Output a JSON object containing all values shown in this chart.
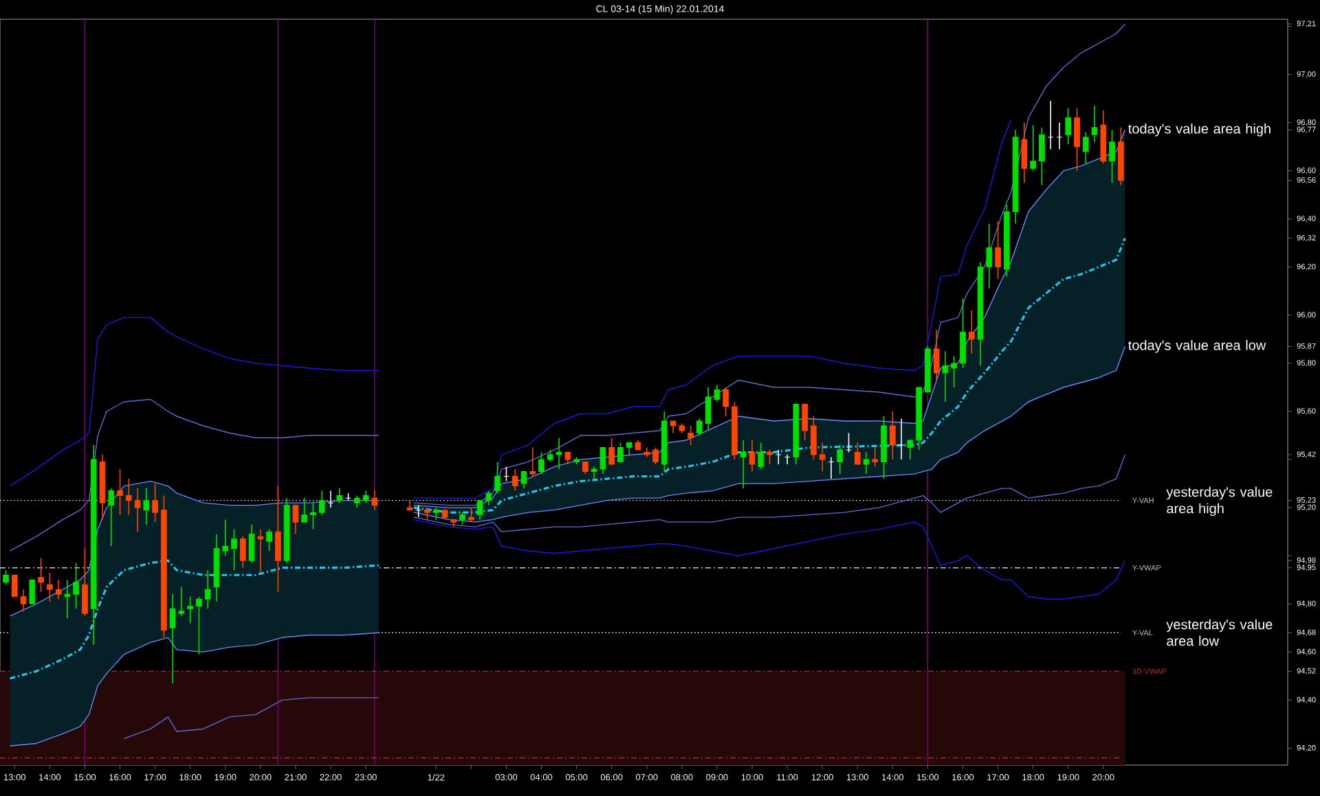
{
  "chart_data": {
    "type": "candlestick",
    "title": "CL 03-14 (15 Min)  22.01.2014",
    "x": [
      "2014-01-21T12:45",
      "2014-01-21T13:00",
      "2014-01-21T13:15",
      "2014-01-21T13:30",
      "2014-01-21T13:45",
      "2014-01-21T14:00",
      "2014-01-21T14:15",
      "2014-01-21T14:30",
      "2014-01-21T14:45",
      "2014-01-21T15:00",
      "2014-01-21T15:15",
      "2014-01-21T15:30",
      "2014-01-21T15:45",
      "2014-01-21T16:00",
      "2014-01-21T16:15",
      "2014-01-21T16:30",
      "2014-01-21T16:45",
      "2014-01-21T17:00",
      "2014-01-21T17:15",
      "2014-01-21T17:30",
      "2014-01-21T17:45",
      "2014-01-21T18:00",
      "2014-01-21T18:15",
      "2014-01-21T18:30",
      "2014-01-21T18:45",
      "2014-01-21T19:00",
      "2014-01-21T19:15",
      "2014-01-21T19:30",
      "2014-01-21T19:45",
      "2014-01-21T20:00",
      "2014-01-21T20:15",
      "2014-01-21T20:30",
      "2014-01-21T20:45",
      "2014-01-21T21:00",
      "2014-01-21T21:15",
      "2014-01-21T21:30",
      "2014-01-21T21:45",
      "2014-01-21T22:00",
      "2014-01-21T22:15",
      "2014-01-21T22:30",
      "2014-01-21T22:45",
      "2014-01-21T23:00",
      "2014-01-21T23:15",
      "2014-01-22T00:15",
      "2014-01-22T00:30",
      "2014-01-22T00:45",
      "2014-01-22T01:00",
      "2014-01-22T01:15",
      "2014-01-22T01:30",
      "2014-01-22T01:45",
      "2014-01-22T02:00",
      "2014-01-22T02:15",
      "2014-01-22T02:30",
      "2014-01-22T02:45",
      "2014-01-22T03:00",
      "2014-01-22T03:15",
      "2014-01-22T03:30",
      "2014-01-22T03:45",
      "2014-01-22T04:00",
      "2014-01-22T04:15",
      "2014-01-22T04:30",
      "2014-01-22T04:45",
      "2014-01-22T05:00",
      "2014-01-22T05:15",
      "2014-01-22T05:30",
      "2014-01-22T05:45",
      "2014-01-22T06:00",
      "2014-01-22T06:15",
      "2014-01-22T06:30",
      "2014-01-22T06:45",
      "2014-01-22T07:00",
      "2014-01-22T07:15",
      "2014-01-22T07:30",
      "2014-01-22T07:45",
      "2014-01-22T08:00",
      "2014-01-22T08:15",
      "2014-01-22T08:30",
      "2014-01-22T08:45",
      "2014-01-22T09:00",
      "2014-01-22T09:15",
      "2014-01-22T09:30",
      "2014-01-22T09:45",
      "2014-01-22T10:00",
      "2014-01-22T10:15",
      "2014-01-22T10:30",
      "2014-01-22T10:45",
      "2014-01-22T11:00",
      "2014-01-22T11:15",
      "2014-01-22T11:30",
      "2014-01-22T11:45",
      "2014-01-22T12:00",
      "2014-01-22T12:15",
      "2014-01-22T12:30",
      "2014-01-22T12:45",
      "2014-01-22T13:00",
      "2014-01-22T13:15",
      "2014-01-22T13:30",
      "2014-01-22T13:45",
      "2014-01-22T14:00",
      "2014-01-22T14:15",
      "2014-01-22T14:30",
      "2014-01-22T14:45",
      "2014-01-22T15:00",
      "2014-01-22T15:15",
      "2014-01-22T15:30",
      "2014-01-22T15:45",
      "2014-01-22T16:00",
      "2014-01-22T16:15",
      "2014-01-22T16:30",
      "2014-01-22T16:45",
      "2014-01-22T17:00",
      "2014-01-22T17:15",
      "2014-01-22T17:30",
      "2014-01-22T17:45",
      "2014-01-22T18:00",
      "2014-01-22T18:15",
      "2014-01-22T18:30",
      "2014-01-22T18:45",
      "2014-01-22T19:00",
      "2014-01-22T19:15",
      "2014-01-22T19:30",
      "2014-01-22T19:45",
      "2014-01-22T20:00",
      "2014-01-22T20:15",
      "2014-01-22T20:30"
    ],
    "ohlc": [
      [
        94.89,
        94.94,
        94.88,
        94.92
      ],
      [
        94.92,
        94.92,
        94.83,
        94.83
      ],
      [
        94.83,
        94.86,
        94.77,
        94.8
      ],
      [
        94.8,
        94.9,
        94.8,
        94.9
      ],
      [
        94.91,
        94.99,
        94.85,
        94.89
      ],
      [
        94.88,
        94.93,
        94.81,
        94.86
      ],
      [
        94.86,
        94.9,
        94.82,
        94.84
      ],
      [
        94.83,
        94.9,
        94.74,
        94.84
      ],
      [
        94.84,
        94.97,
        94.78,
        94.89
      ],
      [
        94.88,
        95.03,
        94.75,
        94.76
      ],
      [
        94.78,
        95.46,
        94.63,
        95.4
      ],
      [
        95.39,
        95.42,
        95.15,
        95.22
      ],
      [
        95.21,
        95.28,
        95.04,
        95.27
      ],
      [
        95.27,
        95.36,
        95.17,
        95.25
      ],
      [
        95.25,
        95.32,
        95.17,
        95.23
      ],
      [
        95.23,
        95.28,
        95.1,
        95.2
      ],
      [
        95.19,
        95.28,
        95.13,
        95.23
      ],
      [
        95.23,
        95.3,
        95.14,
        95.18
      ],
      [
        95.19,
        95.25,
        94.66,
        94.69
      ],
      [
        94.7,
        94.84,
        94.47,
        94.78
      ],
      [
        94.76,
        94.87,
        94.75,
        94.77
      ],
      [
        94.78,
        94.83,
        94.72,
        94.79
      ],
      [
        94.79,
        94.83,
        94.59,
        94.82
      ],
      [
        94.82,
        94.94,
        94.78,
        94.86
      ],
      [
        94.87,
        95.09,
        94.81,
        95.03
      ],
      [
        95.02,
        95.15,
        95.0,
        95.04
      ],
      [
        95.03,
        95.11,
        94.94,
        95.07
      ],
      [
        95.07,
        95.08,
        94.95,
        94.98
      ],
      [
        94.98,
        95.13,
        94.97,
        95.09
      ],
      [
        95.08,
        95.11,
        94.93,
        95.07
      ],
      [
        95.06,
        95.11,
        95.02,
        95.1
      ],
      [
        95.1,
        95.29,
        94.85,
        94.98
      ],
      [
        94.98,
        95.24,
        94.97,
        95.21
      ],
      [
        95.21,
        95.21,
        95.09,
        95.14
      ],
      [
        95.14,
        95.24,
        95.14,
        95.17
      ],
      [
        95.17,
        95.22,
        95.11,
        95.18
      ],
      [
        95.18,
        95.27,
        95.17,
        95.23
      ],
      [
        95.22,
        95.27,
        95.2,
        95.22
      ],
      [
        95.23,
        95.28,
        95.22,
        95.25
      ],
      [
        95.24,
        95.26,
        95.23,
        95.24
      ],
      [
        95.22,
        95.25,
        95.2,
        95.24
      ],
      [
        95.23,
        95.27,
        95.22,
        95.25
      ],
      [
        95.24,
        95.27,
        95.19,
        95.21
      ],
      [
        95.2,
        95.23,
        95.19,
        95.19
      ],
      [
        95.19,
        95.21,
        95.16,
        95.19
      ],
      [
        95.19,
        95.2,
        95.15,
        95.18
      ],
      [
        95.18,
        95.2,
        95.15,
        95.19
      ],
      [
        95.19,
        95.19,
        95.15,
        95.16
      ],
      [
        95.15,
        95.15,
        95.12,
        95.14
      ],
      [
        95.15,
        95.18,
        95.13,
        95.17
      ],
      [
        95.16,
        95.2,
        95.14,
        95.15
      ],
      [
        95.17,
        95.23,
        95.15,
        95.23
      ],
      [
        95.23,
        95.27,
        95.21,
        95.26
      ],
      [
        95.27,
        95.39,
        95.26,
        95.33
      ],
      [
        95.33,
        95.37,
        95.31,
        95.33
      ],
      [
        95.33,
        95.36,
        95.27,
        95.29
      ],
      [
        95.3,
        95.35,
        95.28,
        95.35
      ],
      [
        95.35,
        95.45,
        95.33,
        95.34
      ],
      [
        95.35,
        95.43,
        95.34,
        95.4
      ],
      [
        95.4,
        95.44,
        95.39,
        95.42
      ],
      [
        95.42,
        95.49,
        95.36,
        95.43
      ],
      [
        95.43,
        95.43,
        95.38,
        95.4
      ],
      [
        95.39,
        95.41,
        95.38,
        95.4
      ],
      [
        95.39,
        95.39,
        95.34,
        95.35
      ],
      [
        95.35,
        95.37,
        95.32,
        95.36
      ],
      [
        95.36,
        95.45,
        95.34,
        95.45
      ],
      [
        95.45,
        95.49,
        95.38,
        95.38
      ],
      [
        95.39,
        95.47,
        95.39,
        95.45
      ],
      [
        95.45,
        95.47,
        95.42,
        95.47
      ],
      [
        95.47,
        95.48,
        95.44,
        95.44
      ],
      [
        95.43,
        95.45,
        95.41,
        95.42
      ],
      [
        95.44,
        95.45,
        95.38,
        95.39
      ],
      [
        95.38,
        95.6,
        95.35,
        95.56
      ],
      [
        95.56,
        95.56,
        95.51,
        95.54
      ],
      [
        95.54,
        95.55,
        95.51,
        95.52
      ],
      [
        95.51,
        95.54,
        95.46,
        95.49
      ],
      [
        95.51,
        95.57,
        95.5,
        95.56
      ],
      [
        95.55,
        95.7,
        95.52,
        95.66
      ],
      [
        95.65,
        95.71,
        95.64,
        95.69
      ],
      [
        95.69,
        95.7,
        95.58,
        95.62
      ],
      [
        95.62,
        95.64,
        95.4,
        95.42
      ],
      [
        95.41,
        95.48,
        95.28,
        95.43
      ],
      [
        95.43,
        95.48,
        95.35,
        95.38
      ],
      [
        95.37,
        95.47,
        95.36,
        95.43
      ],
      [
        95.43,
        95.44,
        95.38,
        95.42
      ],
      [
        95.42,
        95.44,
        95.38,
        95.42
      ],
      [
        95.41,
        95.42,
        95.38,
        95.41
      ],
      [
        95.41,
        95.63,
        95.38,
        95.63
      ],
      [
        95.63,
        95.63,
        95.48,
        95.52
      ],
      [
        95.54,
        95.58,
        95.4,
        95.42
      ],
      [
        95.42,
        95.47,
        95.35,
        95.4
      ],
      [
        95.39,
        95.41,
        95.32,
        95.39
      ],
      [
        95.39,
        95.46,
        95.34,
        95.44
      ],
      [
        95.44,
        95.51,
        95.43,
        95.44
      ],
      [
        95.43,
        95.47,
        95.38,
        95.38
      ],
      [
        95.38,
        95.43,
        95.34,
        95.4
      ],
      [
        95.4,
        95.45,
        95.37,
        95.39
      ],
      [
        95.39,
        95.58,
        95.32,
        95.54
      ],
      [
        95.54,
        95.6,
        95.4,
        95.46
      ],
      [
        95.46,
        95.57,
        95.4,
        95.46
      ],
      [
        95.45,
        95.48,
        95.4,
        95.48
      ],
      [
        95.48,
        95.7,
        95.44,
        95.7
      ],
      [
        95.68,
        95.87,
        95.68,
        95.86
      ],
      [
        95.86,
        95.94,
        95.73,
        95.76
      ],
      [
        95.76,
        95.85,
        95.64,
        95.79
      ],
      [
        95.78,
        95.83,
        95.7,
        95.8
      ],
      [
        95.8,
        96.07,
        95.78,
        95.93
      ],
      [
        95.93,
        96.02,
        95.84,
        95.9
      ],
      [
        95.9,
        96.22,
        95.79,
        96.2
      ],
      [
        96.2,
        96.38,
        96.11,
        96.28
      ],
      [
        96.28,
        96.39,
        96.15,
        96.2
      ],
      [
        96.19,
        96.46,
        96.16,
        96.43
      ],
      [
        96.43,
        96.77,
        96.38,
        96.74
      ],
      [
        96.73,
        96.8,
        96.55,
        96.61
      ],
      [
        96.61,
        96.79,
        96.6,
        96.64
      ],
      [
        96.64,
        96.78,
        96.54,
        96.75
      ],
      [
        96.74,
        96.89,
        96.69,
        96.74
      ],
      [
        96.74,
        96.8,
        96.69,
        96.74
      ],
      [
        96.75,
        96.86,
        96.71,
        96.82
      ],
      [
        96.82,
        96.86,
        96.6,
        96.7
      ],
      [
        96.68,
        96.76,
        96.63,
        96.74
      ],
      [
        96.75,
        96.87,
        96.72,
        96.78
      ],
      [
        96.79,
        96.85,
        96.63,
        96.64
      ],
      [
        96.64,
        96.77,
        96.55,
        96.72
      ],
      [
        96.72,
        96.78,
        96.54,
        96.56
      ]
    ],
    "colors": [
      "#00e000",
      "#ff4500",
      "#ff4500",
      "#00e000",
      "#ff4500",
      "#ff4500",
      "#ff4500",
      "#00e000",
      "#00e000",
      "#ff4500",
      "#00e000",
      "#ff4500",
      "#00e000",
      "#ff4500",
      "#ff4500",
      "#ff4500",
      "#00e000",
      "#ff4500",
      "#ff4500",
      "#00e000",
      "#00e000",
      "#00e000",
      "#00e000",
      "#00e000",
      "#00e000",
      "#00e000",
      "#00e000",
      "#ff4500",
      "#00e000",
      "#ff4500",
      "#00e000",
      "#ff4500",
      "#00e000",
      "#ff4500",
      "#00e000",
      "#00e000",
      "#00e000",
      "#ffffff",
      "#00e000",
      "#ffffff",
      "#00e000",
      "#00e000",
      "#ff4500",
      "#ff4500",
      "#ffffff",
      "#ff4500",
      "#00e000",
      "#ff4500",
      "#ff4500",
      "#00e000",
      "#ff4500",
      "#00e000",
      "#00e000",
      "#00e000",
      "#ffffff",
      "#ff4500",
      "#00e000",
      "#ff4500",
      "#00e000",
      "#00e000",
      "#00e000",
      "#ff4500",
      "#00e000",
      "#ff4500",
      "#00e000",
      "#00e000",
      "#ff4500",
      "#00e000",
      "#00e000",
      "#ff4500",
      "#ff4500",
      "#ff4500",
      "#00e000",
      "#ff4500",
      "#ff4500",
      "#ff4500",
      "#00e000",
      "#00e000",
      "#00e000",
      "#ff4500",
      "#ff4500",
      "#00e000",
      "#ff4500",
      "#00e000",
      "#ff4500",
      "#ffffff",
      "#ffffff",
      "#00e000",
      "#ff4500",
      "#ff4500",
      "#ff4500",
      "#ffffff",
      "#00e000",
      "#ffffff",
      "#ff4500",
      "#00e000",
      "#ff4500",
      "#00e000",
      "#ff4500",
      "#ffffff",
      "#00e000",
      "#00e000",
      "#00e000",
      "#ff4500",
      "#00e000",
      "#00e000",
      "#00e000",
      "#ff4500",
      "#00e000",
      "#00e000",
      "#ff4500",
      "#00e000",
      "#00e000",
      "#ff4500",
      "#00e000",
      "#00e000",
      "#ffffff",
      "#ffffff",
      "#00e000",
      "#ff4500",
      "#00e000",
      "#00e000",
      "#ff4500",
      "#00e000",
      "#ff4500"
    ],
    "series": [
      {
        "type": "line",
        "color": "#1ec8f0",
        "line_style": "dashed",
        "x": [
          "2014-01-21T12:52",
          "2014-01-21T13:37",
          "2014-01-21T14:22",
          "2014-01-21T14:52",
          "2014-01-21T15:07",
          "2014-01-21T15:22",
          "2014-01-21T15:37",
          "2014-01-21T16:07",
          "2014-01-21T16:52",
          "2014-01-21T17:22",
          "2014-01-21T17:37",
          "2014-01-21T18:22",
          "2014-01-21T19:07",
          "2014-01-21T19:52",
          "2014-01-21T20:37",
          "2014-01-21T21:22",
          "2014-01-21T22:22",
          "2014-01-21T23:22",
          "2014-01-21T23:45",
          "2014-01-22T00:22",
          "2014-01-22T01:22",
          "2014-01-22T02:07",
          "2014-01-22T02:37",
          "2014-01-22T02:52",
          "2014-01-22T03:37",
          "2014-01-22T04:22",
          "2014-01-22T05:07",
          "2014-01-22T05:52",
          "2014-01-22T06:37",
          "2014-01-22T07:22",
          "2014-01-22T07:37",
          "2014-01-22T08:07",
          "2014-01-22T08:52",
          "2014-01-22T09:37",
          "2014-01-22T10:37",
          "2014-01-22T11:37",
          "2014-01-22T14:37",
          "2014-01-22T14:52",
          "2014-01-22T15:07",
          "2014-01-22T15:22",
          "2014-01-22T15:52",
          "2014-01-22T16:07",
          "2014-01-22T16:37",
          "2014-01-22T17:07",
          "2014-01-22T17:22",
          "2014-01-22T17:52",
          "2014-01-22T18:52",
          "2014-01-22T19:22",
          "2014-01-22T19:52",
          "2014-01-22T20:22",
          "2014-01-22T20:37"
        ],
        "values": [
          94.49,
          94.52,
          94.57,
          94.61,
          94.67,
          94.78,
          94.87,
          94.94,
          94.97,
          94.98,
          94.94,
          94.92,
          94.92,
          94.92,
          94.95,
          94.95,
          94.95,
          94.96,
          null,
          95.2,
          95.18,
          95.18,
          95.19,
          95.23,
          95.26,
          95.29,
          95.31,
          95.32,
          95.33,
          95.33,
          95.36,
          95.37,
          95.39,
          95.43,
          95.43,
          95.45,
          95.46,
          95.47,
          95.51,
          95.56,
          95.62,
          95.68,
          95.76,
          95.85,
          95.89,
          96.03,
          96.15,
          96.17,
          96.2,
          96.23,
          96.32
        ],
        "upper": [
          94.75,
          94.8,
          94.86,
          94.9,
          94.94,
          95.11,
          95.2,
          95.29,
          95.31,
          95.29,
          95.26,
          95.22,
          95.21,
          95.21,
          95.22,
          95.22,
          95.23,
          95.23,
          null,
          95.21,
          95.2,
          95.2,
          95.24,
          95.3,
          95.32,
          95.37,
          95.4,
          95.41,
          95.42,
          95.43,
          95.47,
          95.48,
          95.53,
          95.58,
          95.56,
          95.57,
          95.55,
          95.56,
          95.67,
          95.78,
          95.8,
          95.89,
          95.99,
          96.15,
          96.22,
          96.43,
          96.6,
          96.62,
          96.65,
          96.68,
          96.77
        ],
        "lower": [
          94.21,
          94.22,
          94.26,
          94.29,
          94.34,
          94.46,
          94.51,
          94.59,
          94.64,
          94.66,
          94.61,
          94.6,
          94.62,
          94.63,
          94.66,
          94.67,
          94.67,
          94.68,
          null,
          95.18,
          95.15,
          95.14,
          95.15,
          95.16,
          95.18,
          95.19,
          95.21,
          95.23,
          95.24,
          95.24,
          95.25,
          95.26,
          95.27,
          95.3,
          95.3,
          95.31,
          95.34,
          95.35,
          95.36,
          95.4,
          95.43,
          95.47,
          95.52,
          95.56,
          95.58,
          95.64,
          95.7,
          95.72,
          95.74,
          95.77,
          95.87
        ]
      },
      {
        "type": "line",
        "color": "#6b8afc",
        "x": [
          "2014-01-21T12:52",
          "2014-01-21T13:37",
          "2014-01-21T14:22",
          "2014-01-21T14:52",
          "2014-01-21T15:07",
          "2014-01-21T15:22",
          "2014-01-21T15:37",
          "2014-01-21T16:07",
          "2014-01-21T16:52",
          "2014-01-21T17:22",
          "2014-01-21T17:37",
          "2014-01-21T18:22",
          "2014-01-21T19:07",
          "2014-01-21T19:52",
          "2014-01-21T20:37",
          "2014-01-21T21:22",
          "2014-01-21T22:22",
          "2014-01-21T23:22",
          "2014-01-21T23:45",
          "2014-01-22T00:22",
          "2014-01-22T01:22",
          "2014-01-22T02:07",
          "2014-01-22T02:37",
          "2014-01-22T02:52",
          "2014-01-22T03:37",
          "2014-01-22T04:22",
          "2014-01-22T05:07",
          "2014-01-22T05:52",
          "2014-01-22T06:37",
          "2014-01-22T07:22",
          "2014-01-22T07:37",
          "2014-01-22T08:07",
          "2014-01-22T08:52",
          "2014-01-22T09:37",
          "2014-01-22T10:37",
          "2014-01-22T11:37",
          "2014-01-22T12:37",
          "2014-01-22T13:37",
          "2014-01-22T14:37",
          "2014-01-22T14:52",
          "2014-01-22T15:07",
          "2014-01-22T15:22",
          "2014-01-22T15:52",
          "2014-01-22T16:07",
          "2014-01-22T16:37",
          "2014-01-22T17:07",
          "2014-01-22T17:22",
          "2014-01-22T17:52",
          "2014-01-22T18:22",
          "2014-01-22T18:52",
          "2014-01-22T19:22",
          "2014-01-22T19:52",
          "2014-01-22T20:22",
          "2014-01-22T20:37"
        ],
        "values": [
          94.75,
          94.8,
          94.86,
          94.9,
          94.94,
          95.11,
          95.2,
          95.29,
          95.31,
          95.29,
          95.26,
          95.22,
          95.21,
          95.21,
          95.22,
          95.22,
          95.23,
          95.23,
          null,
          95.21,
          95.2,
          95.2,
          95.24,
          95.3,
          95.32,
          95.37,
          95.4,
          95.41,
          95.42,
          95.43,
          95.47,
          95.48,
          95.53,
          95.58,
          95.56,
          95.57,
          95.56,
          95.56,
          95.55,
          95.56,
          95.67,
          95.78,
          95.8,
          95.89,
          95.99,
          96.15,
          96.22,
          96.43,
          96.52,
          96.6,
          96.62,
          96.65,
          96.68,
          96.77
        ]
      },
      {
        "type": "line",
        "color": "#6b8afc",
        "x": [
          "2014-01-21T12:52",
          "2014-01-21T13:37",
          "2014-01-21T14:22",
          "2014-01-21T14:52",
          "2014-01-21T15:07",
          "2014-01-21T15:22",
          "2014-01-21T15:37",
          "2014-01-21T16:07",
          "2014-01-21T16:52",
          "2014-01-21T17:22",
          "2014-01-21T17:37",
          "2014-01-21T18:22",
          "2014-01-21T19:07",
          "2014-01-21T19:52",
          "2014-01-21T20:37",
          "2014-01-21T21:22",
          "2014-01-21T22:22",
          "2014-01-21T23:22",
          "2014-01-21T23:45",
          "2014-01-22T00:22",
          "2014-01-22T01:22",
          "2014-01-22T02:07",
          "2014-01-22T02:37",
          "2014-01-22T02:52",
          "2014-01-22T03:37",
          "2014-01-22T04:22",
          "2014-01-22T05:07",
          "2014-01-22T05:52",
          "2014-01-22T06:37",
          "2014-01-22T07:22",
          "2014-01-22T07:37",
          "2014-01-22T08:07",
          "2014-01-22T08:52",
          "2014-01-22T09:37",
          "2014-01-22T10:37",
          "2014-01-22T11:37",
          "2014-01-22T12:37",
          "2014-01-22T13:37",
          "2014-01-22T14:37",
          "2014-01-22T14:52",
          "2014-01-22T15:07",
          "2014-01-22T15:22",
          "2014-01-22T15:52",
          "2014-01-22T16:07",
          "2014-01-22T16:37",
          "2014-01-22T17:07",
          "2014-01-22T17:22",
          "2014-01-22T17:52",
          "2014-01-22T18:22",
          "2014-01-22T18:52",
          "2014-01-22T19:22",
          "2014-01-22T19:52",
          "2014-01-22T20:22",
          "2014-01-22T20:37"
        ],
        "values": [
          94.21,
          94.22,
          94.26,
          94.29,
          94.34,
          94.46,
          94.51,
          94.59,
          94.64,
          94.66,
          94.61,
          94.6,
          94.62,
          94.63,
          94.66,
          94.67,
          94.67,
          94.68,
          null,
          95.18,
          95.15,
          95.14,
          95.15,
          95.16,
          95.18,
          95.19,
          95.21,
          95.23,
          95.24,
          95.24,
          95.25,
          95.26,
          95.27,
          95.3,
          95.3,
          95.31,
          95.32,
          95.33,
          95.34,
          95.35,
          95.36,
          95.4,
          95.43,
          95.47,
          95.52,
          95.56,
          95.58,
          95.64,
          95.67,
          95.7,
          95.72,
          95.74,
          95.77,
          95.87
        ]
      },
      {
        "type": "line",
        "color": "#5a6ed2",
        "x": [
          "2014-01-21T12:52",
          "2014-01-21T13:37",
          "2014-01-21T14:22",
          "2014-01-21T14:52",
          "2014-01-21T15:07",
          "2014-01-21T15:22",
          "2014-01-21T15:37",
          "2014-01-21T16:07",
          "2014-01-21T16:52",
          "2014-01-21T17:22",
          "2014-01-21T17:37",
          "2014-01-21T18:22",
          "2014-01-21T19:07",
          "2014-01-21T19:52",
          "2014-01-21T20:37",
          "2014-01-21T21:22",
          "2014-01-21T22:22",
          "2014-01-21T23:22",
          "2014-01-21T23:45",
          "2014-01-22T00:22",
          "2014-01-22T01:22",
          "2014-01-22T02:07",
          "2014-01-22T02:37",
          "2014-01-22T02:52",
          "2014-01-22T03:37",
          "2014-01-22T04:22",
          "2014-01-22T05:07",
          "2014-01-22T05:52",
          "2014-01-22T06:37",
          "2014-01-22T07:22",
          "2014-01-22T07:37",
          "2014-01-22T08:07",
          "2014-01-22T08:52",
          "2014-01-22T09:37",
          "2014-01-22T10:37",
          "2014-01-22T11:37",
          "2014-01-22T12:37",
          "2014-01-22T13:37",
          "2014-01-22T14:37",
          "2014-01-22T14:52",
          "2014-01-22T15:07",
          "2014-01-22T15:22",
          "2014-01-22T15:52",
          "2014-01-22T16:07",
          "2014-01-22T16:37",
          "2014-01-22T17:07",
          "2014-01-22T17:22",
          "2014-01-22T17:52",
          "2014-01-22T18:22",
          "2014-01-22T18:52",
          "2014-01-22T19:22",
          "2014-01-22T19:52",
          "2014-01-22T20:22",
          "2014-01-22T20:37"
        ],
        "values": [
          95.02,
          95.08,
          95.15,
          95.19,
          95.23,
          95.5,
          95.6,
          95.64,
          95.65,
          95.6,
          95.58,
          95.54,
          95.51,
          95.49,
          95.49,
          95.5,
          95.5,
          95.5,
          null,
          95.22,
          95.21,
          95.21,
          95.26,
          95.36,
          95.39,
          95.44,
          95.5,
          95.5,
          95.51,
          95.52,
          95.58,
          95.59,
          95.66,
          95.73,
          95.7,
          95.7,
          95.69,
          95.68,
          95.66,
          95.68,
          95.8,
          95.97,
          95.99,
          96.09,
          96.2,
          96.42,
          96.51,
          96.82,
          96.95,
          97.03,
          97.09,
          97.13,
          97.17,
          97.21
        ]
      },
      {
        "type": "line",
        "color": "#5a6ed2",
        "x": [
          "2014-01-21T16:07",
          "2014-01-21T16:52",
          "2014-01-21T17:22",
          "2014-01-21T17:37",
          "2014-01-21T18:22",
          "2014-01-21T19:07",
          "2014-01-21T19:52",
          "2014-01-21T20:37",
          "2014-01-21T21:22",
          "2014-01-21T22:22",
          "2014-01-21T23:22",
          "2014-01-21T23:45",
          "2014-01-22T00:22",
          "2014-01-22T01:22",
          "2014-01-22T02:07",
          "2014-01-22T02:37",
          "2014-01-22T02:52",
          "2014-01-22T03:37",
          "2014-01-22T04:22",
          "2014-01-22T05:07",
          "2014-01-22T05:52",
          "2014-01-22T06:37",
          "2014-01-22T07:22",
          "2014-01-22T07:37",
          "2014-01-22T08:07",
          "2014-01-22T08:52",
          "2014-01-22T09:37",
          "2014-01-22T10:37",
          "2014-01-22T11:37",
          "2014-01-22T12:37",
          "2014-01-22T13:37",
          "2014-01-22T14:37",
          "2014-01-22T14:52",
          "2014-01-22T15:07",
          "2014-01-22T15:22",
          "2014-01-22T15:52",
          "2014-01-22T16:07",
          "2014-01-22T16:37",
          "2014-01-22T17:07",
          "2014-01-22T17:22",
          "2014-01-22T17:52",
          "2014-01-22T18:22",
          "2014-01-22T18:52",
          "2014-01-22T19:22",
          "2014-01-22T19:52",
          "2014-01-22T20:22",
          "2014-01-22T20:37"
        ],
        "values": [
          94.24,
          94.28,
          94.33,
          94.27,
          94.28,
          94.33,
          94.34,
          94.4,
          94.41,
          94.41,
          94.41,
          null,
          95.16,
          95.13,
          95.12,
          95.14,
          95.1,
          95.11,
          95.12,
          95.12,
          95.13,
          95.14,
          95.15,
          95.14,
          95.14,
          95.14,
          95.16,
          95.16,
          95.17,
          95.18,
          95.2,
          95.24,
          95.25,
          95.22,
          95.18,
          95.22,
          95.24,
          95.26,
          95.28,
          95.28,
          95.24,
          95.25,
          95.26,
          95.28,
          95.29,
          95.32,
          95.42
        ]
      },
      {
        "type": "line",
        "color": "#1a1ae6",
        "x": [
          "2014-01-21T12:52",
          "2014-01-21T13:37",
          "2014-01-21T14:22",
          "2014-01-21T14:52",
          "2014-01-21T15:07",
          "2014-01-21T15:22",
          "2014-01-21T15:37",
          "2014-01-21T16:07",
          "2014-01-21T16:52",
          "2014-01-21T17:22",
          "2014-01-21T17:37",
          "2014-01-21T18:22",
          "2014-01-21T19:07",
          "2014-01-21T19:52",
          "2014-01-21T20:37",
          "2014-01-21T21:22",
          "2014-01-21T22:22",
          "2014-01-21T23:22",
          "2014-01-21T23:45",
          "2014-01-22T00:22",
          "2014-01-22T01:22",
          "2014-01-22T02:07",
          "2014-01-22T02:37",
          "2014-01-22T02:52",
          "2014-01-22T03:37",
          "2014-01-22T04:22",
          "2014-01-22T05:07",
          "2014-01-22T05:52",
          "2014-01-22T06:37",
          "2014-01-22T07:22",
          "2014-01-22T07:37",
          "2014-01-22T08:07",
          "2014-01-22T08:52",
          "2014-01-22T09:37",
          "2014-01-22T10:37",
          "2014-01-22T11:37",
          "2014-01-22T12:37",
          "2014-01-22T13:37",
          "2014-01-22T14:37",
          "2014-01-22T14:52",
          "2014-01-22T15:07",
          "2014-01-22T15:22",
          "2014-01-22T15:52",
          "2014-01-22T16:07",
          "2014-01-22T16:37",
          "2014-01-22T17:07",
          "2014-01-22T17:22"
        ],
        "values": [
          95.29,
          95.36,
          95.44,
          95.48,
          95.51,
          95.9,
          95.96,
          95.99,
          95.99,
          95.93,
          95.91,
          95.86,
          95.82,
          95.8,
          95.79,
          95.78,
          95.77,
          95.77,
          null,
          95.24,
          95.24,
          95.24,
          95.28,
          95.42,
          95.46,
          95.55,
          95.59,
          95.59,
          95.62,
          95.62,
          95.69,
          95.71,
          95.79,
          95.83,
          95.83,
          95.83,
          95.8,
          95.78,
          95.77,
          95.79,
          95.97,
          96.16,
          96.17,
          96.29,
          96.44,
          96.72,
          96.81
        ]
      },
      {
        "type": "line",
        "color": "#1a1ae6",
        "x": [
          "2014-01-22T00:22",
          "2014-01-22T01:22",
          "2014-01-22T02:07",
          "2014-01-22T02:37",
          "2014-01-22T02:52",
          "2014-01-22T03:37",
          "2014-01-22T04:22",
          "2014-01-22T05:07",
          "2014-01-22T05:52",
          "2014-01-22T06:37",
          "2014-01-22T07:22",
          "2014-01-22T07:37",
          "2014-01-22T08:07",
          "2014-01-22T08:52",
          "2014-01-22T09:37",
          "2014-01-22T10:37",
          "2014-01-22T11:37",
          "2014-01-22T12:37",
          "2014-01-22T13:37",
          "2014-01-22T14:37",
          "2014-01-22T14:52",
          "2014-01-22T15:07",
          "2014-01-22T15:22",
          "2014-01-22T15:52",
          "2014-01-22T16:07",
          "2014-01-22T16:37",
          "2014-01-22T17:07",
          "2014-01-22T17:22",
          "2014-01-22T17:52",
          "2014-01-22T18:22",
          "2014-01-22T18:52",
          "2014-01-22T19:22",
          "2014-01-22T19:52",
          "2014-01-22T20:22",
          "2014-01-22T20:37"
        ],
        "values": [
          95.15,
          95.12,
          95.11,
          95.12,
          95.04,
          95.02,
          95.01,
          95.02,
          95.03,
          95.04,
          95.05,
          95.05,
          95.04,
          95.02,
          95.0,
          95.03,
          95.06,
          95.09,
          95.11,
          95.14,
          95.12,
          95.04,
          94.96,
          94.98,
          95.0,
          94.94,
          94.9,
          94.9,
          94.83,
          94.82,
          94.82,
          94.83,
          94.84,
          94.9,
          94.98
        ]
      }
    ],
    "xlim": [
      "2014-01-21T12:35",
      "2014-01-23T01:15"
    ],
    "ylim": [
      94.13,
      97.23
    ],
    "xticks": [
      {
        "value": "2014-01-21T13:00",
        "label": "13:00"
      },
      {
        "value": "2014-01-21T14:00",
        "label": "14:00"
      },
      {
        "value": "2014-01-21T15:00",
        "label": "15:00"
      },
      {
        "value": "2014-01-21T16:00",
        "label": "16:00"
      },
      {
        "value": "2014-01-21T17:00",
        "label": "17:00"
      },
      {
        "value": "2014-01-21T18:00",
        "label": "18:00"
      },
      {
        "value": "2014-01-21T19:00",
        "label": "19:00"
      },
      {
        "value": "2014-01-21T20:00",
        "label": "20:00"
      },
      {
        "value": "2014-01-21T21:00",
        "label": "21:00"
      },
      {
        "value": "2014-01-21T22:00",
        "label": "22:00"
      },
      {
        "value": "2014-01-21T23:00",
        "label": "23:00"
      },
      {
        "value": "2014-01-22T01:00",
        "label": "1/22"
      },
      {
        "value": "2014-01-22T02:00",
        "label": null
      },
      {
        "value": "2014-01-22T03:00",
        "label": "03:00"
      },
      {
        "value": "2014-01-22T04:00",
        "label": "04:00"
      },
      {
        "value": "2014-01-22T05:00",
        "label": "05:00"
      },
      {
        "value": "2014-01-22T06:00",
        "label": "06:00"
      },
      {
        "value": "2014-01-22T07:00",
        "label": "07:00"
      },
      {
        "value": "2014-01-22T08:00",
        "label": "08:00"
      },
      {
        "value": "2014-01-22T09:00",
        "label": "09:00"
      },
      {
        "value": "2014-01-22T10:00",
        "label": "10:00"
      },
      {
        "value": "2014-01-22T11:00",
        "label": "11:00"
      },
      {
        "value": "2014-01-22T12:00",
        "label": "12:00"
      },
      {
        "value": "2014-01-22T13:00",
        "label": "13:00"
      },
      {
        "value": "2014-01-22T14:00",
        "label": "14:00"
      },
      {
        "value": "2014-01-22T15:00",
        "label": "15:00"
      },
      {
        "value": "2014-01-22T16:00",
        "label": "16:00"
      },
      {
        "value": "2014-01-22T17:00",
        "label": "17:00"
      },
      {
        "value": "2014-01-22T18:00",
        "label": "18:00"
      },
      {
        "value": "2014-01-22T19:00",
        "label": "19:00"
      },
      {
        "value": "2014-01-22T20:00",
        "label": "20:00"
      }
    ],
    "yticks": [
      {
        "value": 94.2,
        "label": "94,20"
      },
      {
        "value": 94.4,
        "label": "94,40"
      },
      {
        "value": 94.6,
        "label": "94,60"
      },
      {
        "value": 94.8,
        "label": "94,80"
      },
      {
        "value": 95.0,
        "label": null
      },
      {
        "value": 95.2,
        "label": "95,20"
      },
      {
        "value": 95.4,
        "label": null
      },
      {
        "value": 95.6,
        "label": "95,60"
      },
      {
        "value": 95.8,
        "label": "95,80"
      },
      {
        "value": 96.0,
        "label": "96,00"
      },
      {
        "value": 96.2,
        "label": "96,20"
      },
      {
        "value": 96.4,
        "label": "96,40"
      },
      {
        "value": 96.6,
        "label": "96,60"
      },
      {
        "value": 96.8,
        "label": "96,80"
      },
      {
        "value": 97.0,
        "label": "97,00"
      },
      {
        "value": 97.2,
        "label": null
      },
      {
        "value": 97.21,
        "label": "97,21"
      },
      {
        "value": 96.77,
        "label": "96,77"
      },
      {
        "value": 96.56,
        "label": "96,56"
      },
      {
        "value": 96.32,
        "label": "96,32"
      },
      {
        "value": 95.87,
        "label": "95,87"
      },
      {
        "value": 95.42,
        "label": "95,42"
      },
      {
        "value": 95.23,
        "label": "95,23"
      },
      {
        "value": 94.98,
        "label": "94,98"
      },
      {
        "value": 94.95,
        "label": "94,95"
      },
      {
        "value": 94.68,
        "label": "94,68"
      },
      {
        "value": 94.52,
        "label": "94,52"
      }
    ],
    "ref_lines": [
      {
        "axis": "x",
        "value": "2014-01-21T15:00",
        "color": "#800080"
      },
      {
        "axis": "x",
        "value": "2014-01-21T20:30",
        "color": "#800080"
      },
      {
        "axis": "x",
        "value": "2014-01-21T23:15",
        "color": "#800080"
      },
      {
        "axis": "x",
        "value": "2014-01-22T15:00",
        "color": "#800080"
      },
      {
        "axis": "y",
        "value": 95.23,
        "label": "Y-VAH",
        "color": "#c8c8d2",
        "line_style": "dotted"
      },
      {
        "axis": "y",
        "value": 94.95,
        "label": "Y-VWAP",
        "color": "#c8c8d2",
        "line_style": "dashed"
      },
      {
        "axis": "y",
        "value": 94.68,
        "label": "Y-VAL",
        "color": "#c8c8d2",
        "line_style": "dotted"
      },
      {
        "axis": "y",
        "value": 94.52,
        "label": "3D-VWAP",
        "color": "#c0202a",
        "line_style": "dashed"
      },
      {
        "axis": "y",
        "value": 94.16,
        "color": "#c0202a",
        "line_style": "dashed"
      }
    ],
    "bands": [
      {
        "axis": "y",
        "from": 94.13,
        "to": 94.52,
        "color": "#260808"
      }
    ],
    "annotations": [
      {
        "text": "today's value area high",
        "x": "2014-01-22T20:30",
        "y": 96.77
      },
      {
        "text": "today's value area low",
        "x": "2014-01-22T20:30",
        "y": 95.87
      },
      "yesterday's value area high",
      "yesterday's value area low"
    ]
  }
}
